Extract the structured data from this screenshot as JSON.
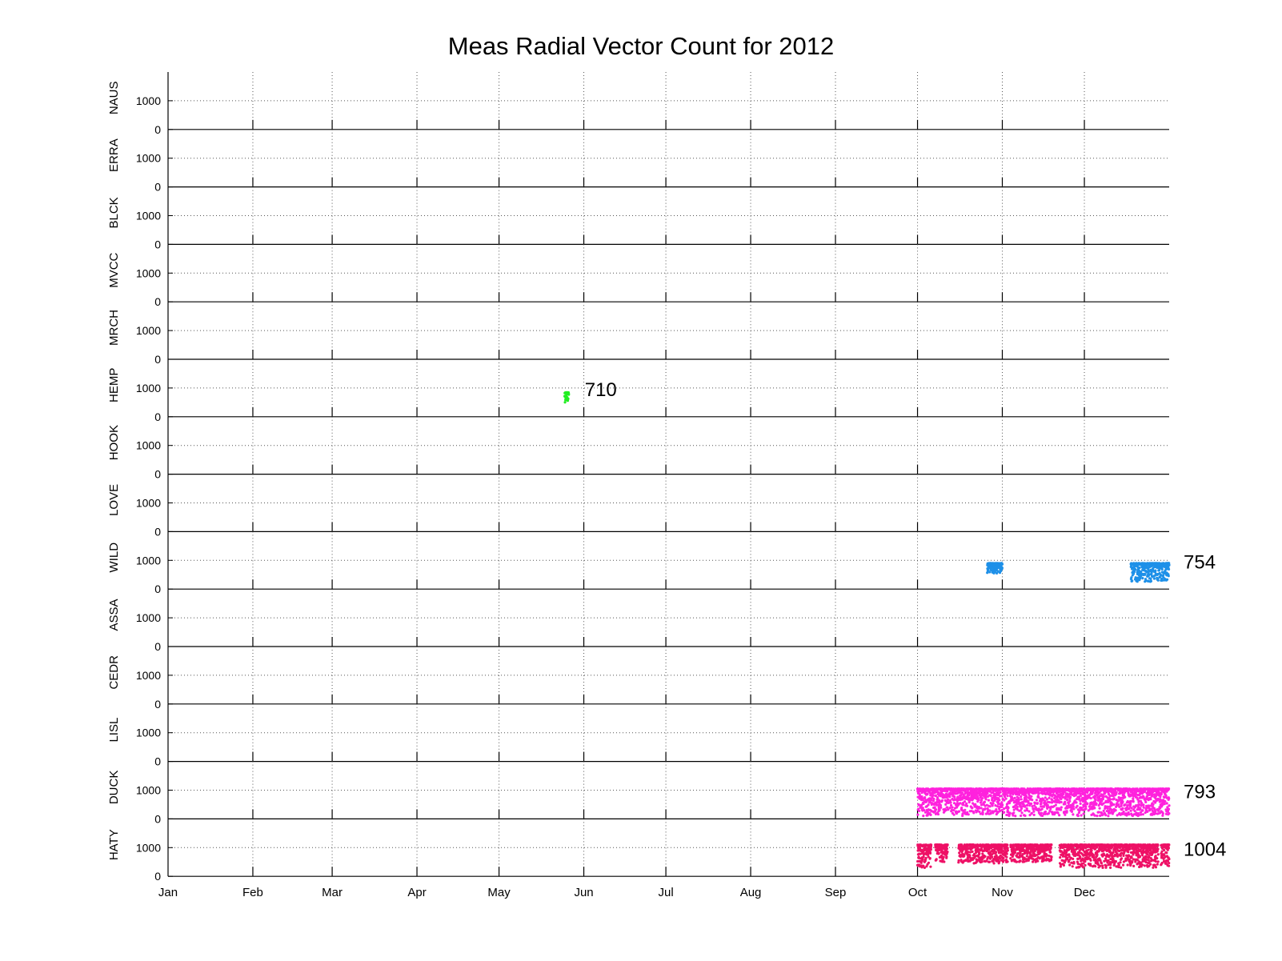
{
  "chart_data": {
    "type": "scatter",
    "title": "Meas Radial Vector Count for 2012",
    "xlabel": "",
    "ylabel": "",
    "x_ticks": [
      "Jan",
      "Feb",
      "Mar",
      "Apr",
      "May",
      "Jun",
      "Jul",
      "Aug",
      "Sep",
      "Oct",
      "Nov",
      "Dec"
    ],
    "x_tick_days": [
      0,
      31,
      60,
      91,
      121,
      152,
      182,
      213,
      244,
      274,
      305,
      335
    ],
    "xlim_days": [
      0,
      366
    ],
    "ylim": [
      0,
      2000
    ],
    "y_ticks": [
      0,
      1000
    ],
    "y_gridlines": [
      1000
    ],
    "grid": "dotted, x at month starts and y at 1000",
    "panels": [
      {
        "station": "NAUS",
        "color": "",
        "annotation": "",
        "segments": []
      },
      {
        "station": "ERRA",
        "color": "",
        "annotation": "",
        "segments": []
      },
      {
        "station": "BLCK",
        "color": "",
        "annotation": "",
        "segments": []
      },
      {
        "station": "MVCC",
        "color": "",
        "annotation": "",
        "segments": []
      },
      {
        "station": "MRCH",
        "color": "",
        "annotation": "",
        "segments": []
      },
      {
        "station": "HEMP",
        "color": "#22ee22",
        "annotation": "710",
        "segments": [
          {
            "start_day": 145.0,
            "end_day": 146.5,
            "min": 500,
            "max": 850
          }
        ]
      },
      {
        "station": "HOOK",
        "color": "",
        "annotation": "",
        "segments": []
      },
      {
        "station": "LOVE",
        "color": "",
        "annotation": "",
        "segments": []
      },
      {
        "station": "WILD",
        "color": "#1e90e8",
        "annotation": "754",
        "segments": [
          {
            "start_day": 299.5,
            "end_day": 305.0,
            "min": 550,
            "max": 900
          },
          {
            "start_day": 352.0,
            "end_day": 366.0,
            "min": 250,
            "max": 900
          }
        ]
      },
      {
        "station": "ASSA",
        "color": "",
        "annotation": "",
        "segments": []
      },
      {
        "station": "CEDR",
        "color": "",
        "annotation": "",
        "segments": []
      },
      {
        "station": "LISL",
        "color": "",
        "annotation": "",
        "segments": []
      },
      {
        "station": "DUCK",
        "color": "#ff22dd",
        "annotation": "793",
        "segments": [
          {
            "start_day": 274.0,
            "end_day": 366.0,
            "min": 100,
            "max": 1050
          }
        ]
      },
      {
        "station": "HATY",
        "color": "#ee1166",
        "annotation": "1004",
        "segments": [
          {
            "start_day": 274.0,
            "end_day": 279.0,
            "min": 300,
            "max": 1100
          },
          {
            "start_day": 280.5,
            "end_day": 285.0,
            "min": 500,
            "max": 1100
          },
          {
            "start_day": 289.0,
            "end_day": 307.0,
            "min": 450,
            "max": 1100
          },
          {
            "start_day": 308.0,
            "end_day": 323.0,
            "min": 500,
            "max": 1100
          },
          {
            "start_day": 326.0,
            "end_day": 362.0,
            "min": 300,
            "max": 1100
          },
          {
            "start_day": 363.0,
            "end_day": 366.0,
            "min": 300,
            "max": 1100
          }
        ]
      }
    ]
  }
}
